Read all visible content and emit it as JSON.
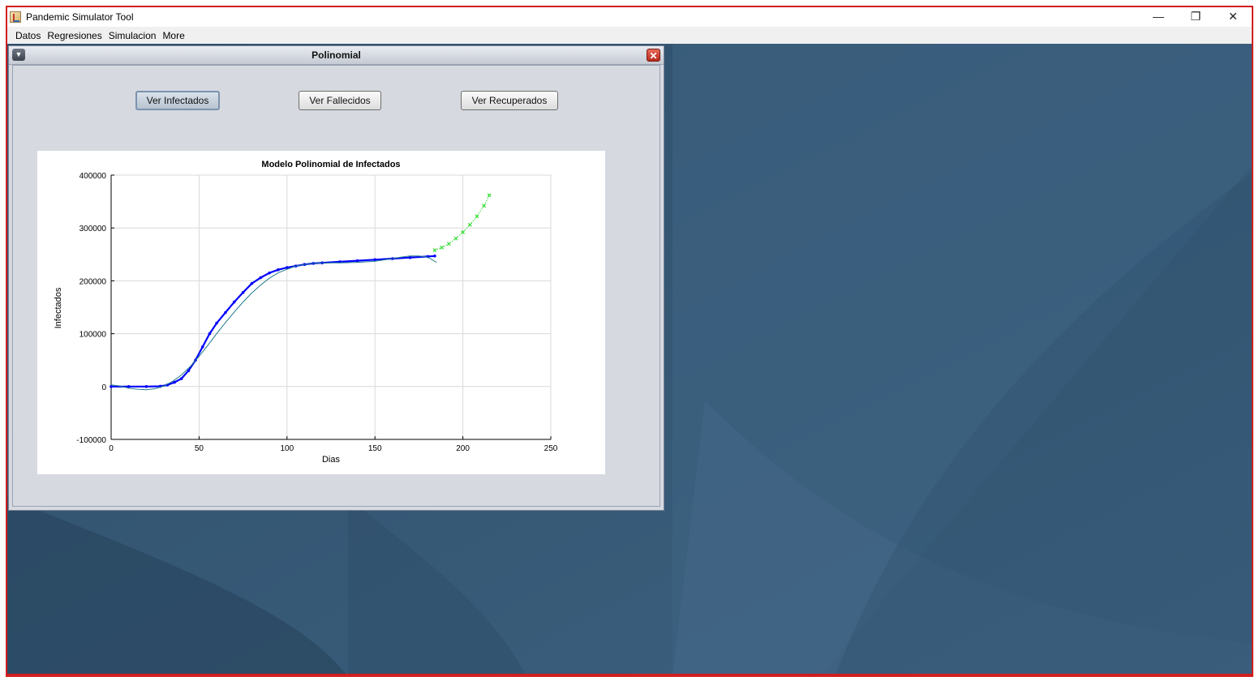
{
  "window": {
    "title": "Pandemic Simulator Tool",
    "controls": [
      "—",
      "❐",
      "✕"
    ]
  },
  "menubar": {
    "items": [
      "Datos",
      "Regresiones",
      "Simulacion",
      "More"
    ]
  },
  "internal_frame": {
    "title": "Polinomial"
  },
  "buttons": {
    "infected": "Ver Infectados",
    "deaths": "Ver Fallecidos",
    "recovered": "Ver Recuperados"
  },
  "colors": {
    "data": "#0000ff",
    "fit": "#1f7a8c",
    "prediction": "#33dd33",
    "desktop": "#3a5e7c",
    "frame_border": "#d11f1f"
  },
  "chart_data": {
    "type": "line",
    "title": "Modelo Polinomial de Infectados",
    "xlabel": "Dias",
    "ylabel": "Infectados",
    "xlim": [
      0,
      250
    ],
    "ylim": [
      -100000,
      400000
    ],
    "xticks": [
      "0",
      "50",
      "100",
      "150",
      "200",
      "250"
    ],
    "yticks": [
      "-100000",
      "0",
      "100000",
      "200000",
      "300000",
      "400000"
    ],
    "grid": true,
    "series": [
      {
        "kind": "data",
        "x": [
          0,
          10,
          20,
          28,
          32,
          36,
          40,
          44,
          48,
          52,
          56,
          60,
          65,
          70,
          75,
          80,
          85,
          90,
          95,
          100,
          105,
          110,
          115,
          120,
          130,
          140,
          150,
          160,
          170,
          180,
          184
        ],
        "y": [
          0,
          0,
          0,
          500,
          3000,
          8000,
          15000,
          30000,
          50000,
          75000,
          100000,
          120000,
          140000,
          160000,
          178000,
          195000,
          206000,
          215000,
          221000,
          225000,
          228000,
          231000,
          233000,
          234000,
          236000,
          238000,
          240000,
          242000,
          244000,
          246000,
          247000
        ]
      },
      {
        "kind": "fit",
        "x": [
          0,
          5,
          10,
          15,
          20,
          25,
          30,
          35,
          40,
          45,
          50,
          55,
          60,
          65,
          70,
          75,
          80,
          85,
          90,
          95,
          100,
          105,
          110,
          115,
          120,
          125,
          130,
          140,
          150,
          160,
          165,
          170,
          175,
          180,
          185
        ],
        "y": [
          3000,
          1000,
          -3000,
          -5000,
          -6000,
          -4000,
          1000,
          10000,
          22000,
          38000,
          57000,
          78000,
          100000,
          121000,
          141000,
          160000,
          177000,
          192000,
          205000,
          215000,
          222000,
          228000,
          231000,
          233000,
          234000,
          234000,
          234000,
          235000,
          237000,
          242000,
          245000,
          247000,
          247000,
          245000,
          235000
        ]
      },
      {
        "kind": "prediction",
        "x": [
          184,
          188,
          192,
          196,
          200,
          204,
          208,
          212,
          215
        ],
        "y": [
          258000,
          263000,
          270000,
          280000,
          292000,
          306000,
          322000,
          342000,
          362000
        ]
      }
    ]
  }
}
